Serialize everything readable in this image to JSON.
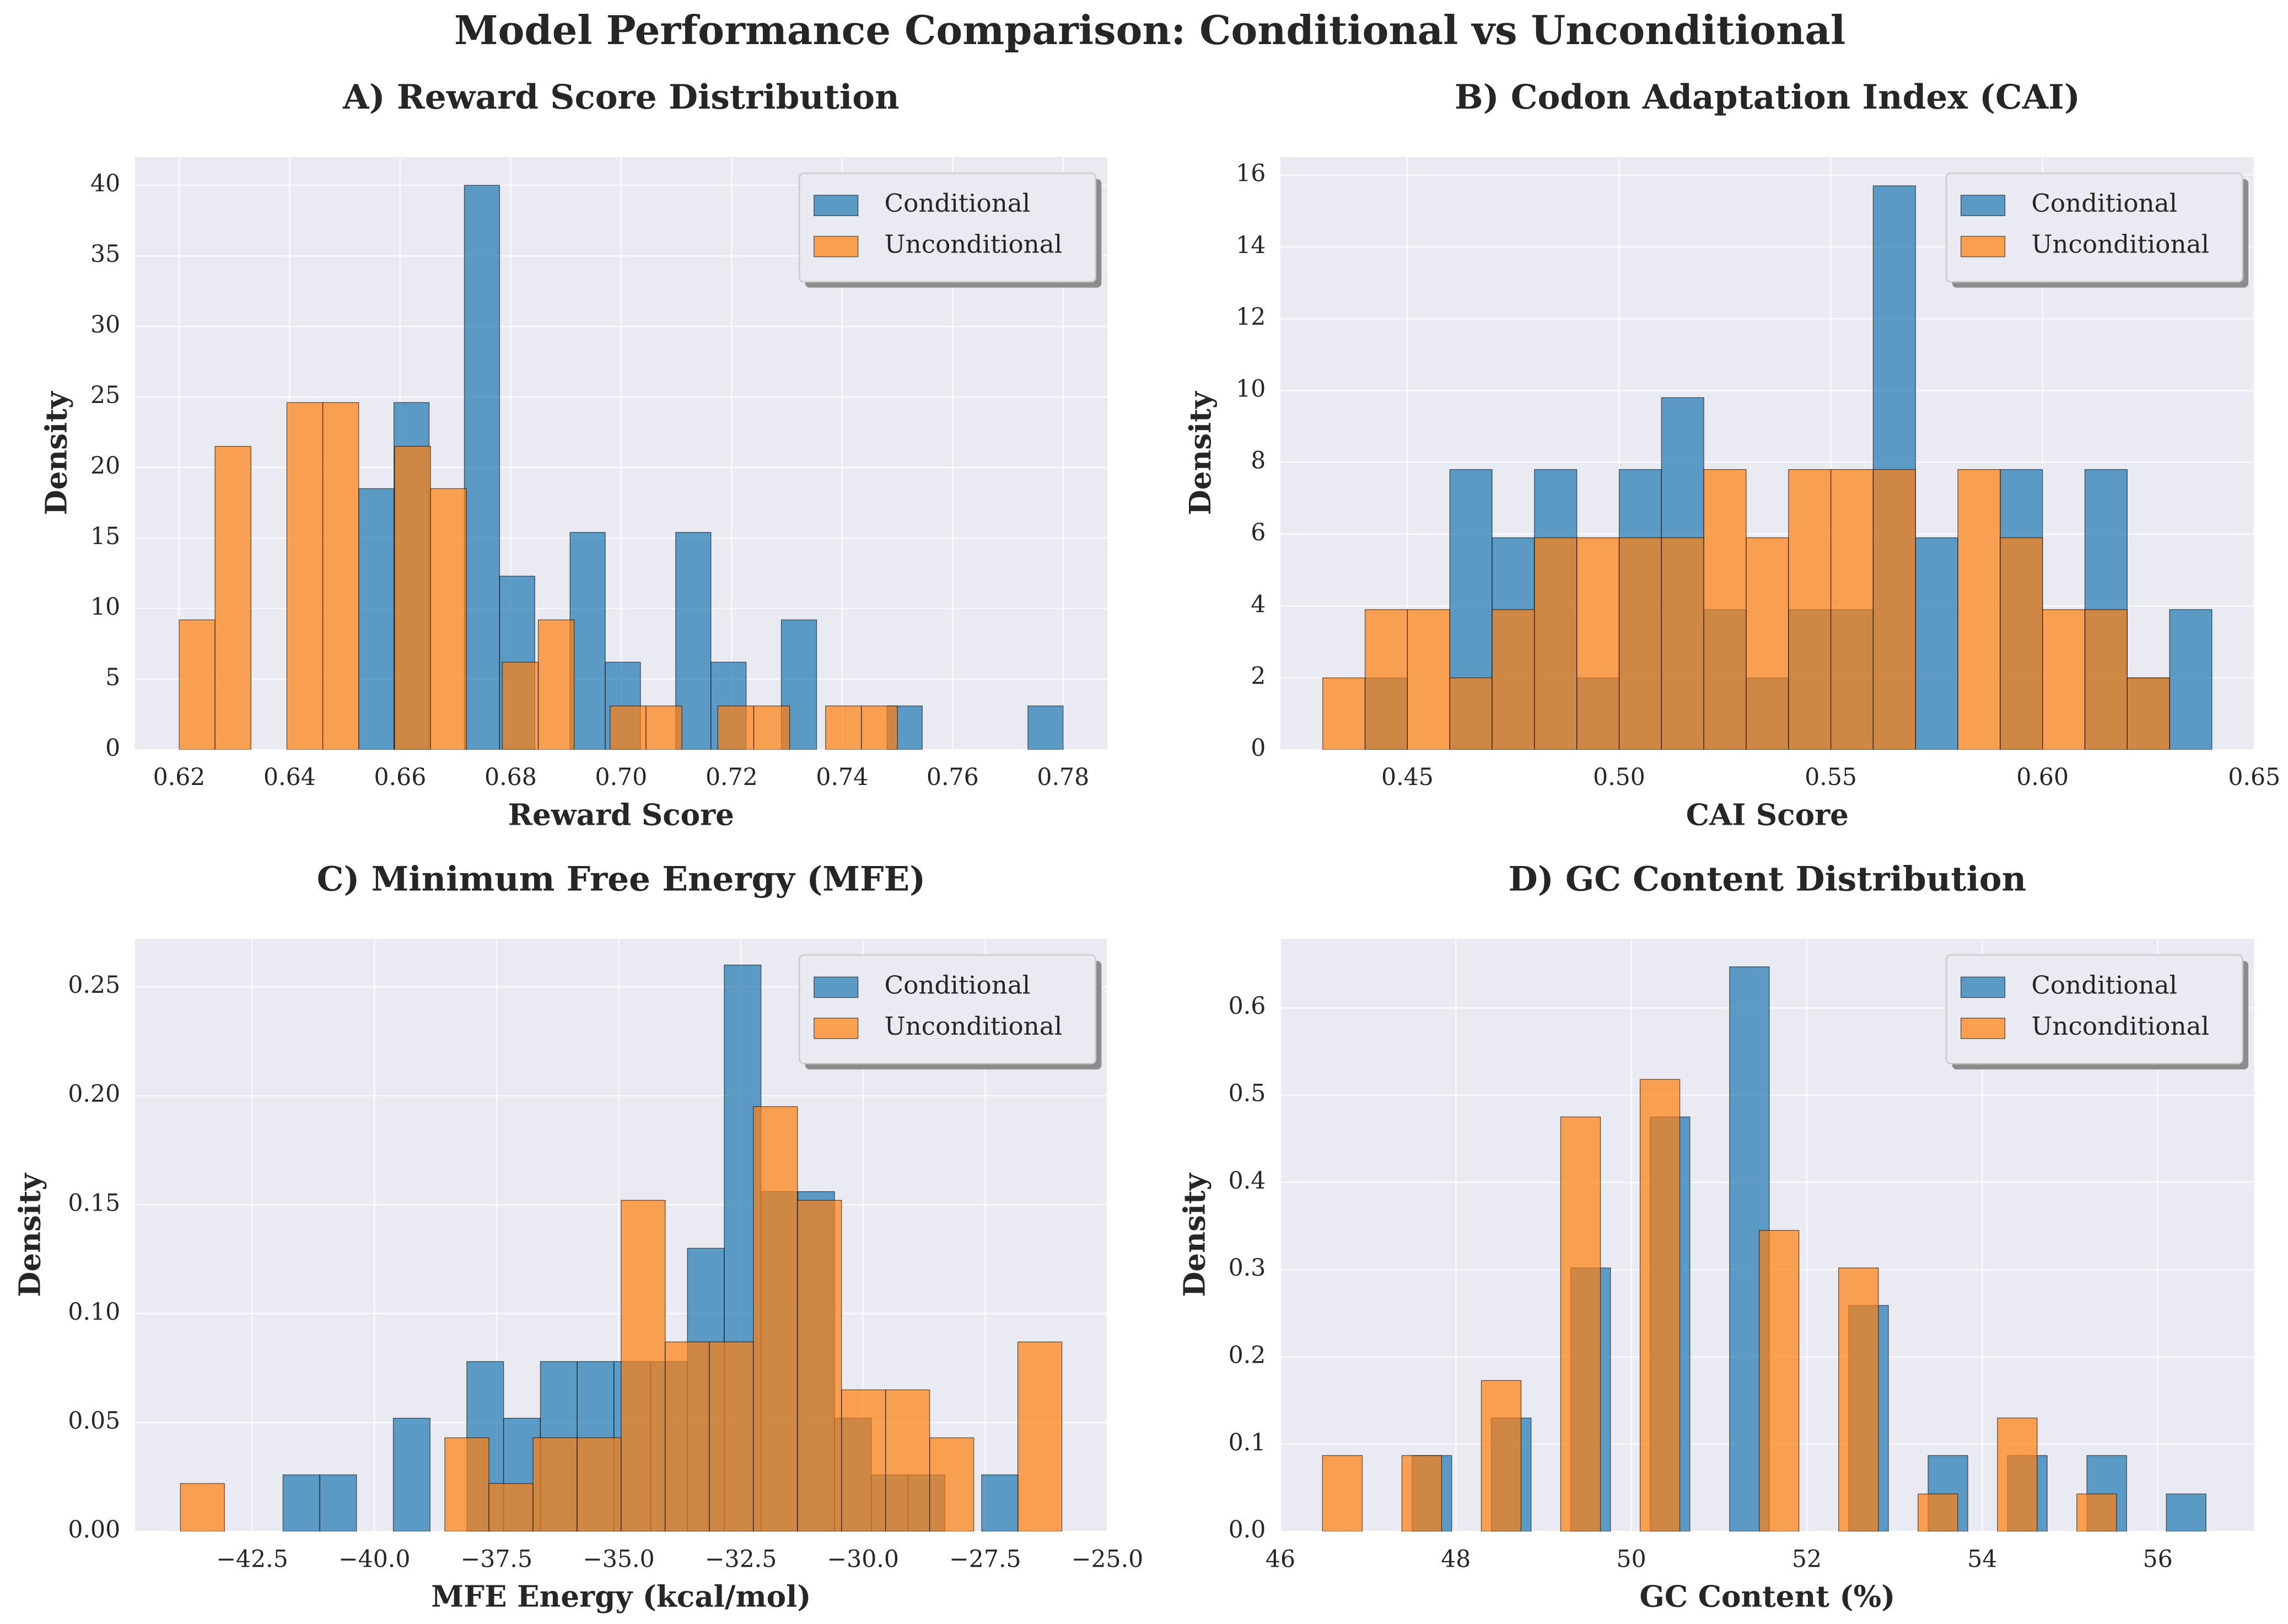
{
  "title": "Model Performance Comparison: Conditional vs Unconditional",
  "chart_data": [
    {
      "type": "histogram",
      "title": "A) Reward Score Distribution",
      "xlabel": "Reward Score",
      "ylabel": "Density",
      "xlim": [
        0.612,
        0.788
      ],
      "ylim": [
        0,
        42
      ],
      "xticks": [
        0.62,
        0.64,
        0.66,
        0.68,
        {
          "value": 0.7,
          "label": "0.70"
        },
        0.72,
        0.74,
        0.76,
        0.78
      ],
      "yticks": [
        0,
        5,
        10,
        15,
        20,
        25,
        30,
        35,
        40
      ],
      "grid": true,
      "legend": "upper right",
      "series": [
        {
          "name": "Conditional",
          "color": "#1f77b4",
          "bins": [
            0.6525,
            0.658875,
            0.66525,
            0.671625,
            0.678,
            0.684375,
            0.69075,
            0.697125,
            0.7035,
            0.709875,
            0.71625,
            0.722625,
            0.729,
            0.735375,
            0.74175,
            0.748125,
            0.7545,
            0.760875,
            0.76725,
            0.773625,
            0.78
          ],
          "values": [
            18.5,
            24.6,
            0,
            40,
            12.3,
            0,
            15.4,
            6.2,
            0,
            15.4,
            6.2,
            0,
            9.2,
            0,
            0,
            3.1,
            0,
            0,
            0,
            3.1
          ]
        },
        {
          "name": "Unconditional",
          "color": "#ff7f0e",
          "bins": [
            0.62,
            0.6265,
            0.633,
            0.6395,
            0.646,
            0.6525,
            0.659,
            0.6655,
            0.672,
            0.6785,
            0.685,
            0.6915,
            0.698,
            0.7045,
            0.711,
            0.7175,
            0.724,
            0.7305,
            0.737,
            0.7435,
            0.75
          ],
          "values": [
            9.2,
            21.5,
            0,
            24.6,
            24.6,
            0,
            21.5,
            18.5,
            0,
            6.2,
            9.2,
            0,
            3.1,
            3.1,
            0,
            3.1,
            3.1,
            0,
            3.1,
            3.1
          ]
        }
      ]
    },
    {
      "type": "histogram",
      "title": "B) Codon Adaptation Index (CAI)",
      "xlabel": "CAI Score",
      "ylabel": "Density",
      "xlim": [
        0.42,
        0.65
      ],
      "ylim": [
        0,
        16.5
      ],
      "xticks": [
        0.45,
        {
          "value": 0.5,
          "label": "0.50"
        },
        0.55,
        {
          "value": 0.6,
          "label": "0.60"
        },
        0.65
      ],
      "yticks": [
        0,
        2,
        4,
        6,
        8,
        10,
        12,
        14,
        16
      ],
      "grid": true,
      "legend": "upper right",
      "series": [
        {
          "name": "Conditional",
          "color": "#1f77b4",
          "bins": [
            0.44,
            0.45,
            0.46,
            0.47,
            0.48,
            0.49,
            0.5,
            0.51,
            0.52,
            0.53,
            0.54,
            0.55,
            0.56,
            0.57,
            0.58,
            0.59,
            0.6,
            0.61,
            0.62,
            0.63,
            0.64
          ],
          "values": [
            2,
            0,
            7.8,
            5.9,
            7.8,
            2,
            7.8,
            9.8,
            3.9,
            2,
            3.9,
            3.9,
            15.7,
            5.9,
            0,
            7.8,
            0,
            7.8,
            2,
            3.9
          ]
        },
        {
          "name": "Unconditional",
          "color": "#ff7f0e",
          "bins": [
            0.43,
            0.44,
            0.45,
            0.46,
            0.47,
            0.48,
            0.49,
            0.5,
            0.51,
            0.52,
            0.53,
            0.54,
            0.55,
            0.56,
            0.57,
            0.58,
            0.59,
            0.6,
            0.61,
            0.62,
            0.63
          ],
          "values": [
            2,
            3.9,
            3.9,
            2,
            3.9,
            5.9,
            5.9,
            5.9,
            5.9,
            7.8,
            5.9,
            7.8,
            7.8,
            7.8,
            0,
            7.8,
            5.9,
            3.9,
            3.9,
            2
          ]
        }
      ]
    },
    {
      "type": "histogram",
      "title": "C) Minimum Free Energy (MFE)",
      "xlabel": "MFE Energy (kcal/mol)",
      "ylabel": "Density",
      "xlim": [
        -44.9,
        -25
      ],
      "ylim": [
        0,
        0.272
      ],
      "xticks": [
        {
          "value": -42.5,
          "label": "−42.5"
        },
        {
          "value": -40,
          "label": "−40.0"
        },
        {
          "value": -37.5,
          "label": "−37.5"
        },
        {
          "value": -35,
          "label": "−35.0"
        },
        {
          "value": -32.5,
          "label": "−32.5"
        },
        {
          "value": -30,
          "label": "−30.0"
        },
        {
          "value": -27.5,
          "label": "−27.5"
        },
        {
          "value": -25,
          "label": "−25.0"
        }
      ],
      "yticks": [
        {
          "value": 0,
          "label": "0.00"
        },
        0.05,
        {
          "value": 0.1,
          "label": "0.10"
        },
        0.15,
        {
          "value": 0.2,
          "label": "0.20"
        },
        0.25
      ],
      "grid": true,
      "legend": "upper right",
      "series": [
        {
          "name": "Conditional",
          "color": "#1f77b4",
          "bins": [
            -41.87,
            -41.1175,
            -40.365,
            -39.6125,
            -38.86,
            -38.1075,
            -37.355,
            -36.6025,
            -35.85,
            -35.0975,
            -34.345,
            -33.5925,
            -32.84,
            -32.0875,
            -31.335,
            -30.5825,
            -29.83,
            -29.0775,
            -28.325,
            -27.5725,
            -26.82
          ],
          "values": [
            0.026,
            0.026,
            0,
            0.052,
            0,
            0.078,
            0.052,
            0.078,
            0.078,
            0.078,
            0.078,
            0.13,
            0.26,
            0.156,
            0.156,
            0.052,
            0.026,
            0.026,
            0,
            0.026
          ]
        },
        {
          "name": "Unconditional",
          "color": "#ff7f0e",
          "bins": [
            -43.97,
            -43.068,
            -42.166,
            -41.264,
            -40.362,
            -39.46,
            -38.558,
            -37.656,
            -36.754,
            -35.852,
            -34.95,
            -34.048,
            -33.146,
            -32.244,
            -31.342,
            -30.44,
            -29.538,
            -28.636,
            -27.734,
            -26.832,
            -25.93
          ],
          "values": [
            0.022,
            0,
            0,
            0,
            0,
            0,
            0.043,
            0.022,
            0.043,
            0.043,
            0.152,
            0.087,
            0.087,
            0.195,
            0.152,
            0.065,
            0.065,
            0.043,
            0,
            0.087
          ]
        }
      ]
    },
    {
      "type": "histogram",
      "title": "D) GC Content Distribution",
      "xlabel": "GC Content (%)",
      "ylabel": "Density",
      "xlim": [
        46,
        57.1
      ],
      "ylim": [
        0,
        0.679
      ],
      "xticks": [
        46,
        48,
        50,
        52,
        54,
        56
      ],
      "yticks": [
        {
          "value": 0,
          "label": "0.0"
        },
        0.1,
        0.2,
        0.3,
        0.4,
        0.5,
        0.6
      ],
      "grid": true,
      "legend": "upper right",
      "series": [
        {
          "name": "Conditional",
          "color": "#1f77b4",
          "bins": [
            47.5,
            47.9525,
            48.405,
            48.8575,
            49.31,
            49.7625,
            50.215,
            50.6675,
            51.12,
            51.5725,
            52.025,
            52.4775,
            52.93,
            53.3825,
            53.835,
            54.2875,
            54.74,
            55.1925,
            55.645,
            56.0975,
            56.55
          ],
          "values": [
            0.087,
            0,
            0.13,
            0,
            0.302,
            0,
            0.475,
            0,
            0.647,
            0,
            0,
            0.259,
            0,
            0.087,
            0,
            0.087,
            0,
            0.087,
            0,
            0.043
          ]
        },
        {
          "name": "Unconditional",
          "color": "#ff7f0e",
          "bins": [
            46.48,
            46.9325,
            47.385,
            47.8375,
            48.29,
            48.7425,
            49.195,
            49.6475,
            50.1,
            50.5525,
            51.005,
            51.4575,
            51.91,
            52.3625,
            52.815,
            53.2675,
            53.72,
            54.1725,
            54.625,
            55.0775,
            55.53
          ],
          "values": [
            0.087,
            0,
            0.087,
            0,
            0.173,
            0,
            0.475,
            0,
            0.518,
            0,
            0,
            0.345,
            0,
            0.302,
            0,
            0.043,
            0,
            0.13,
            0,
            0.043
          ]
        }
      ]
    }
  ]
}
